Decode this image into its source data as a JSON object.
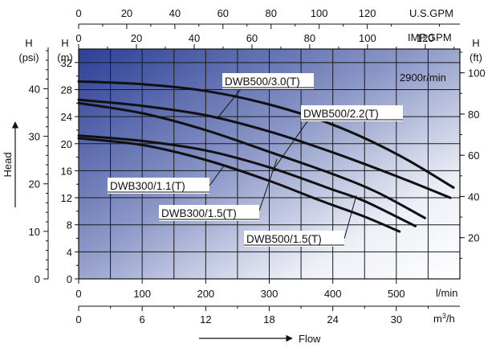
{
  "chart_data": {
    "type": "line",
    "title": "",
    "annotation": "2900r/min",
    "axes": {
      "flow_lmin": {
        "label": "l/min",
        "range": [
          0,
          600
        ],
        "ticks": [
          0,
          100,
          200,
          300,
          400,
          500
        ]
      },
      "flow_m3h": {
        "label": "m³/h",
        "ticks": [
          0,
          6,
          12,
          18,
          24,
          30
        ]
      },
      "flow_usgpm": {
        "label": "U.S.GPM",
        "ticks": [
          0,
          20,
          40,
          60,
          80,
          100,
          120
        ]
      },
      "flow_impgpm": {
        "label": "IMP.GPM",
        "ticks": [
          0,
          20,
          40,
          60,
          80,
          100,
          120
        ]
      },
      "head_m": {
        "label_top": "H",
        "label_unit": "(m)",
        "range": [
          0,
          34
        ],
        "ticks": [
          0,
          4,
          8,
          12,
          16,
          20,
          24,
          28,
          32
        ]
      },
      "head_psi": {
        "label_top": "H",
        "label_unit": "(psi)",
        "ticks": [
          0,
          10,
          20,
          30,
          40
        ]
      },
      "head_ft": {
        "label_top": "H",
        "label_unit": "(ft)",
        "ticks": [
          20,
          40,
          60,
          80,
          100
        ]
      }
    },
    "vertical_axis_title": "Head",
    "horizontal_axis_title": "Flow",
    "series": [
      {
        "name": "DWB500/3.0(T)",
        "x": [
          0,
          100,
          200,
          300,
          400,
          500,
          590
        ],
        "y": [
          29.2,
          28.8,
          27.8,
          25.8,
          22.8,
          18.5,
          13.5
        ]
      },
      {
        "name": "DWB500/2.2(T)",
        "x": [
          0,
          100,
          200,
          300,
          400,
          500,
          585
        ],
        "y": [
          26.5,
          25.6,
          24.2,
          21.8,
          18.7,
          15.2,
          12.0
        ]
      },
      {
        "name": "DWB300/1.5(T)",
        "x": [
          0,
          100,
          200,
          300,
          400,
          470,
          545
        ],
        "y": [
          26.0,
          24.5,
          22.0,
          18.8,
          15.5,
          12.8,
          9.0
        ]
      },
      {
        "name": "DWB300/1.1(T)",
        "x": [
          0,
          100,
          200,
          300,
          400,
          450,
          530
        ],
        "y": [
          21.2,
          20.4,
          19.0,
          16.5,
          13.2,
          11.5,
          7.8
        ]
      },
      {
        "name": "DWB500/1.5(T)",
        "x": [
          0,
          100,
          200,
          300,
          380,
          450,
          505
        ],
        "y": [
          20.8,
          19.8,
          17.6,
          14.5,
          11.6,
          9.2,
          7.0
        ]
      }
    ]
  }
}
